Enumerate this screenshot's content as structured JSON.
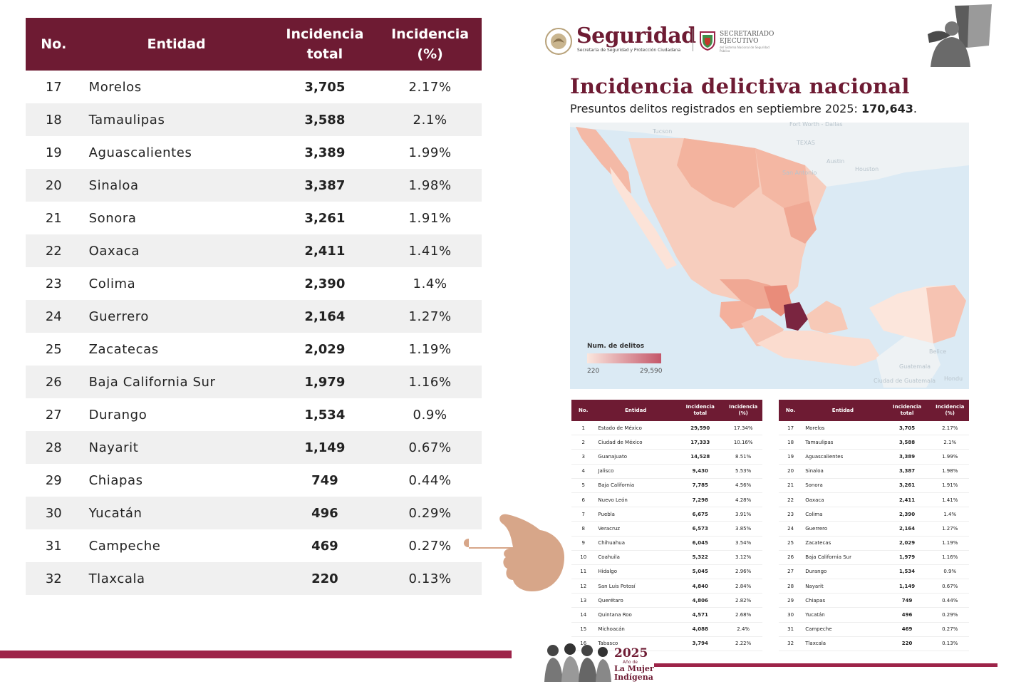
{
  "big_table": {
    "headers": [
      "No.",
      "Entidad",
      "Incidencia\ntotal",
      "Incidencia\n(%)"
    ],
    "rows": [
      {
        "no": "17",
        "entidad": "Morelos",
        "total": "3,705",
        "pct": "2.17%"
      },
      {
        "no": "18",
        "entidad": "Tamaulipas",
        "total": "3,588",
        "pct": "2.1%"
      },
      {
        "no": "19",
        "entidad": "Aguascalientes",
        "total": "3,389",
        "pct": "1.99%"
      },
      {
        "no": "20",
        "entidad": "Sinaloa",
        "total": "3,387",
        "pct": "1.98%"
      },
      {
        "no": "21",
        "entidad": "Sonora",
        "total": "3,261",
        "pct": "1.91%"
      },
      {
        "no": "22",
        "entidad": "Oaxaca",
        "total": "2,411",
        "pct": "1.41%"
      },
      {
        "no": "23",
        "entidad": "Colima",
        "total": "2,390",
        "pct": "1.4%"
      },
      {
        "no": "24",
        "entidad": "Guerrero",
        "total": "2,164",
        "pct": "1.27%"
      },
      {
        "no": "25",
        "entidad": "Zacatecas",
        "total": "2,029",
        "pct": "1.19%"
      },
      {
        "no": "26",
        "entidad": "Baja California Sur",
        "total": "1,979",
        "pct": "1.16%"
      },
      {
        "no": "27",
        "entidad": "Durango",
        "total": "1,534",
        "pct": "0.9%"
      },
      {
        "no": "28",
        "entidad": "Nayarit",
        "total": "1,149",
        "pct": "0.67%"
      },
      {
        "no": "29",
        "entidad": "Chiapas",
        "total": "749",
        "pct": "0.44%"
      },
      {
        "no": "30",
        "entidad": "Yucatán",
        "total": "496",
        "pct": "0.29%"
      },
      {
        "no": "31",
        "entidad": "Campeche",
        "total": "469",
        "pct": "0.27%"
      },
      {
        "no": "32",
        "entidad": "Tlaxcala",
        "total": "220",
        "pct": "0.13%"
      }
    ]
  },
  "header": {
    "brand": "Seguridad",
    "brand_sub": "Secretaría de Seguridad y Protección Ciudadana",
    "se_line1": "SECRETARIADO",
    "se_line2": "EJECUTIVO",
    "se_small": "del Sistema Nacional de Seguridad Pública"
  },
  "document": {
    "title": "Incidencia delictiva nacional",
    "subtitle": "Presuntos delitos registrados en septiembre 2025:",
    "total": "170,643",
    "period": "."
  },
  "map": {
    "legend_title": "Num. de delitos",
    "legend_min": "220",
    "legend_max": "29,590",
    "labels": [
      {
        "text": "Tucson"
      },
      {
        "text": "Fort Worth - Dallas"
      },
      {
        "text": "TEXAS"
      },
      {
        "text": "Austin"
      },
      {
        "text": "Houston"
      },
      {
        "text": "San Antonio"
      },
      {
        "text": "Belice"
      },
      {
        "text": "Guatemala"
      },
      {
        "text": "Ciudad de Guatemala"
      },
      {
        "text": "Hondu"
      }
    ],
    "colors": {
      "low": "#fbe7de",
      "mid": "#f0a894",
      "high": "#c4576a",
      "max": "#7a2540",
      "water": "#dbeaf4"
    }
  },
  "small_tables": {
    "headers": [
      "No.",
      "Entidad",
      "Incidencia\ntotal",
      "Incidencia\n(%)"
    ],
    "left": [
      {
        "no": "1",
        "entidad": "Estado de México",
        "total": "29,590",
        "pct": "17.34%"
      },
      {
        "no": "2",
        "entidad": "Ciudad de México",
        "total": "17,333",
        "pct": "10.16%"
      },
      {
        "no": "3",
        "entidad": "Guanajuato",
        "total": "14,528",
        "pct": "8.51%"
      },
      {
        "no": "4",
        "entidad": "Jalisco",
        "total": "9,430",
        "pct": "5.53%"
      },
      {
        "no": "5",
        "entidad": "Baja California",
        "total": "7,785",
        "pct": "4.56%"
      },
      {
        "no": "6",
        "entidad": "Nuevo León",
        "total": "7,298",
        "pct": "4.28%"
      },
      {
        "no": "7",
        "entidad": "Puebla",
        "total": "6,675",
        "pct": "3.91%"
      },
      {
        "no": "8",
        "entidad": "Veracruz",
        "total": "6,573",
        "pct": "3.85%"
      },
      {
        "no": "9",
        "entidad": "Chihuahua",
        "total": "6,045",
        "pct": "3.54%"
      },
      {
        "no": "10",
        "entidad": "Coahuila",
        "total": "5,322",
        "pct": "3.12%"
      },
      {
        "no": "11",
        "entidad": "Hidalgo",
        "total": "5,045",
        "pct": "2.96%"
      },
      {
        "no": "12",
        "entidad": "San Luis Potosí",
        "total": "4,840",
        "pct": "2.84%"
      },
      {
        "no": "13",
        "entidad": "Querétaro",
        "total": "4,806",
        "pct": "2.82%"
      },
      {
        "no": "14",
        "entidad": "Quintana Roo",
        "total": "4,571",
        "pct": "2.68%"
      },
      {
        "no": "15",
        "entidad": "Michoacán",
        "total": "4,088",
        "pct": "2.4%"
      },
      {
        "no": "16",
        "entidad": "Tabasco",
        "total": "3,794",
        "pct": "2.22%"
      }
    ],
    "right": [
      {
        "no": "17",
        "entidad": "Morelos",
        "total": "3,705",
        "pct": "2.17%"
      },
      {
        "no": "18",
        "entidad": "Tamaulipas",
        "total": "3,588",
        "pct": "2.1%"
      },
      {
        "no": "19",
        "entidad": "Aguascalientes",
        "total": "3,389",
        "pct": "1.99%"
      },
      {
        "no": "20",
        "entidad": "Sinaloa",
        "total": "3,387",
        "pct": "1.98%"
      },
      {
        "no": "21",
        "entidad": "Sonora",
        "total": "3,261",
        "pct": "1.91%"
      },
      {
        "no": "22",
        "entidad": "Oaxaca",
        "total": "2,411",
        "pct": "1.41%"
      },
      {
        "no": "23",
        "entidad": "Colima",
        "total": "2,390",
        "pct": "1.4%"
      },
      {
        "no": "24",
        "entidad": "Guerrero",
        "total": "2,164",
        "pct": "1.27%"
      },
      {
        "no": "25",
        "entidad": "Zacatecas",
        "total": "2,029",
        "pct": "1.19%"
      },
      {
        "no": "26",
        "entidad": "Baja California Sur",
        "total": "1,979",
        "pct": "1.16%"
      },
      {
        "no": "27",
        "entidad": "Durango",
        "total": "1,534",
        "pct": "0.9%"
      },
      {
        "no": "28",
        "entidad": "Nayarit",
        "total": "1,149",
        "pct": "0.67%"
      },
      {
        "no": "29",
        "entidad": "Chiapas",
        "total": "749",
        "pct": "0.44%"
      },
      {
        "no": "30",
        "entidad": "Yucatán",
        "total": "496",
        "pct": "0.29%"
      },
      {
        "no": "31",
        "entidad": "Campeche",
        "total": "469",
        "pct": "0.27%"
      },
      {
        "no": "32",
        "entidad": "Tlaxcala",
        "total": "220",
        "pct": "0.13%"
      }
    ]
  },
  "footer": {
    "year": "2025",
    "small": "Año de",
    "line1": "La Mujer",
    "line2": "Indígena"
  },
  "colors": {
    "brand": "#6e1b33",
    "accent_bar": "#9d2449",
    "hand": "#d7a689"
  }
}
